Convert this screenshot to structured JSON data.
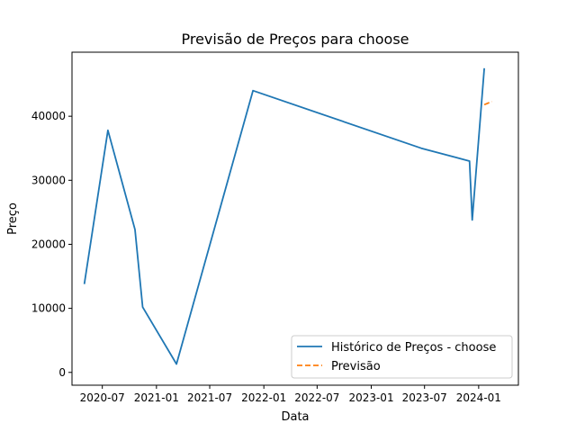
{
  "chart_data": {
    "type": "line",
    "title": "Previsão de Preços para choose",
    "xlabel": "Data",
    "ylabel": "Preço",
    "x_type": "date",
    "xlim": [
      "2020-03-20",
      "2024-05-15"
    ],
    "ylim": [
      -2000,
      50000
    ],
    "x_ticks": [
      "2020-07",
      "2021-01",
      "2021-07",
      "2022-01",
      "2022-07",
      "2023-01",
      "2023-07",
      "2024-01"
    ],
    "y_ticks": [
      0,
      10000,
      20000,
      30000,
      40000
    ],
    "y_tick_labels": [
      "0",
      "10000",
      "20000",
      "30000",
      "40000"
    ],
    "grid": false,
    "legend_placement": "lower-right",
    "series": [
      {
        "name": "Histórico de Preços - choose",
        "color": "#1f77b4",
        "linestyle": "solid",
        "x": [
          "2020-05-01",
          "2020-07-20",
          "2020-10-20",
          "2020-11-15",
          "2021-03-10",
          "2021-11-25",
          "2023-06-20",
          "2023-12-01",
          "2023-12-10",
          "2024-01-20"
        ],
        "y": [
          13800,
          37800,
          22300,
          10200,
          1300,
          44000,
          35000,
          33000,
          23800,
          47500
        ]
      },
      {
        "name": "Previsão",
        "color": "#ff7f0e",
        "linestyle": "dashed",
        "x": [
          "2024-01-20",
          "2024-02-15"
        ],
        "y": [
          41800,
          42300
        ]
      }
    ]
  }
}
